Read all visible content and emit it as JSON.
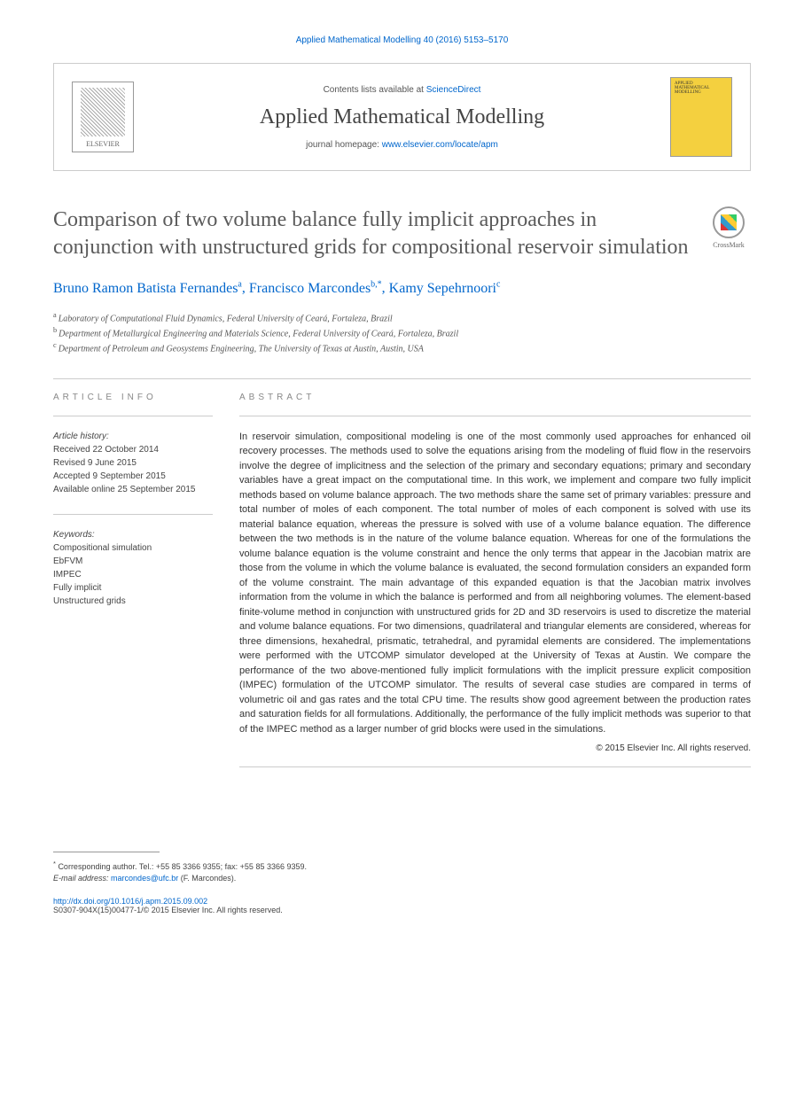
{
  "journal_ref": "Applied Mathematical Modelling 40 (2016) 5153–5170",
  "header": {
    "contents_prefix": "Contents lists available at ",
    "contents_link": "ScienceDirect",
    "journal_name": "Applied Mathematical Modelling",
    "homepage_prefix": "journal homepage: ",
    "homepage_url": "www.elsevier.com/locate/apm",
    "publisher_name": "ELSEVIER",
    "cover_text": "APPLIED MATHEMATICAL MODELLING"
  },
  "crossmark_label": "CrossMark",
  "title": "Comparison of two volume balance fully implicit approaches in conjunction with unstructured grids for compositional reservoir simulation",
  "authors": [
    {
      "name": "Bruno Ramon Batista Fernandes",
      "sup": "a"
    },
    {
      "name": "Francisco Marcondes",
      "sup": "b,*"
    },
    {
      "name": "Kamy Sepehrnoori",
      "sup": "c"
    }
  ],
  "affiliations": [
    {
      "sup": "a",
      "text": "Laboratory of Computational Fluid Dynamics, Federal University of Ceará, Fortaleza, Brazil"
    },
    {
      "sup": "b",
      "text": "Department of Metallurgical Engineering and Materials Science, Federal University of Ceará, Fortaleza, Brazil"
    },
    {
      "sup": "c",
      "text": "Department of Petroleum and Geosystems Engineering, The University of Texas at Austin, Austin, USA"
    }
  ],
  "article_info": {
    "heading": "ARTICLE INFO",
    "history_label": "Article history:",
    "history": [
      "Received 22 October 2014",
      "Revised 9 June 2015",
      "Accepted 9 September 2015",
      "Available online 25 September 2015"
    ],
    "keywords_label": "Keywords:",
    "keywords": [
      "Compositional simulation",
      "EbFVM",
      "IMPEC",
      "Fully implicit",
      "Unstructured grids"
    ]
  },
  "abstract": {
    "heading": "ABSTRACT",
    "text": "In reservoir simulation, compositional modeling is one of the most commonly used approaches for enhanced oil recovery processes. The methods used to solve the equations arising from the modeling of fluid flow in the reservoirs involve the degree of implicitness and the selection of the primary and secondary equations; primary and secondary variables have a great impact on the computational time. In this work, we implement and compare two fully implicit methods based on volume balance approach. The two methods share the same set of primary variables: pressure and total number of moles of each component. The total number of moles of each component is solved with use its material balance equation, whereas the pressure is solved with use of a volume balance equation. The difference between the two methods is in the nature of the volume balance equation. Whereas for one of the formulations the volume balance equation is the volume constraint and hence the only terms that appear in the Jacobian matrix are those from the volume in which the volume balance is evaluated, the second formulation considers an expanded form of the volume constraint. The main advantage of this expanded equation is that the Jacobian matrix involves information from the volume in which the balance is performed and from all neighboring volumes. The element-based finite-volume method in conjunction with unstructured grids for 2D and 3D reservoirs is used to discretize the material and volume balance equations. For two dimensions, quadrilateral and triangular elements are considered, whereas for three dimensions, hexahedral, prismatic, tetrahedral, and pyramidal elements are considered. The implementations were performed with the UTCOMP simulator developed at the University of Texas at Austin. We compare the performance of the two above-mentioned fully implicit formulations with the implicit pressure explicit composition (IMPEC) formulation of the UTCOMP simulator. The results of several case studies are compared in terms of volumetric oil and gas rates and the total CPU time. The results show good agreement between the production rates and saturation fields for all formulations. Additionally, the performance of the fully implicit methods was superior to that of the IMPEC method as a larger number of grid blocks were used in the simulations.",
    "copyright": "© 2015 Elsevier Inc. All rights reserved."
  },
  "footnote": {
    "corresponding": "Corresponding author. Tel.: +55 85 3366 9355; fax: +55 85 3366 9359.",
    "email_label": "E-mail address:",
    "email": "marcondes@ufc.br",
    "email_name": "(F. Marcondes)."
  },
  "doi": {
    "url": "http://dx.doi.org/10.1016/j.apm.2015.09.002",
    "issn_line": "S0307-904X(15)00477-1/© 2015 Elsevier Inc. All rights reserved."
  }
}
